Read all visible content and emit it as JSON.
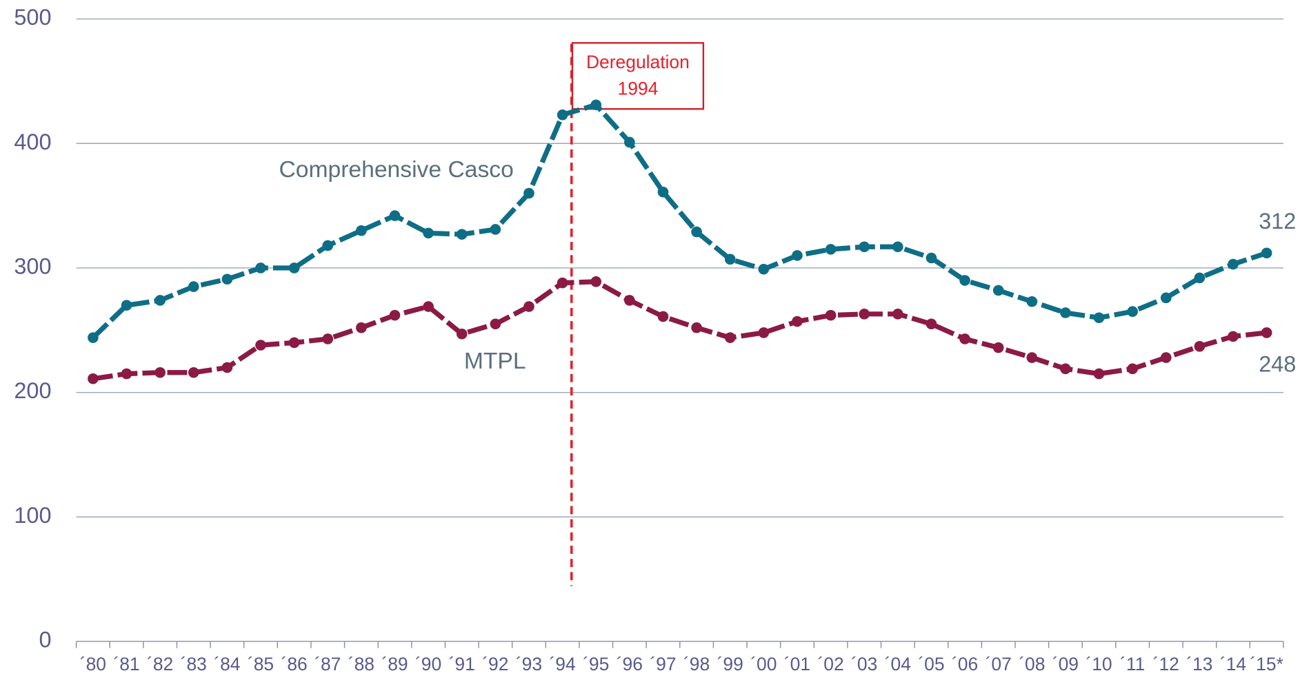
{
  "chart_data": {
    "type": "line",
    "categories": [
      "´80",
      "´81",
      "´82",
      "´83",
      "´84",
      "´85",
      "´86",
      "´87",
      "´88",
      "´89",
      "´90",
      "´91",
      "´92",
      "´93",
      "´94",
      "´95",
      "´96",
      "´97",
      "´98",
      "´99",
      "´00",
      "´01",
      "´02",
      "´03",
      "´04",
      "´05",
      "´06",
      "´07",
      "´08",
      "´09",
      "´10",
      "´11",
      "´12",
      "´13",
      "´14",
      "´15*"
    ],
    "series": [
      {
        "name": "Comprehensive Casco",
        "color": "#0e6e86",
        "values": [
          244,
          270,
          274,
          285,
          291,
          300,
          300,
          318,
          330,
          342,
          328,
          327,
          331,
          360,
          423,
          431,
          401,
          361,
          329,
          307,
          299,
          310,
          315,
          317,
          317,
          308,
          290,
          282,
          273,
          264,
          260,
          265,
          276,
          292,
          303,
          312
        ],
        "value_labels": [
          null,
          null,
          null,
          null,
          null,
          null,
          null,
          null,
          null,
          null,
          null,
          null,
          null,
          null,
          null,
          null,
          null,
          null,
          null,
          null,
          null,
          null,
          null,
          null,
          null,
          null,
          null,
          null,
          null,
          null,
          null,
          null,
          null,
          null,
          null,
          "312"
        ]
      },
      {
        "name": "MTPL",
        "color": "#8b1a45",
        "values": [
          211,
          215,
          216,
          216,
          220,
          238,
          240,
          243,
          252,
          262,
          269,
          247,
          255,
          269,
          288,
          289,
          274,
          261,
          252,
          244,
          248,
          257,
          262,
          263,
          263,
          255,
          243,
          236,
          228,
          219,
          215,
          219,
          228,
          237,
          245,
          248
        ],
        "value_labels": [
          null,
          null,
          null,
          null,
          null,
          null,
          null,
          null,
          null,
          null,
          null,
          null,
          null,
          null,
          null,
          null,
          null,
          null,
          null,
          null,
          null,
          null,
          null,
          null,
          null,
          null,
          null,
          null,
          null,
          null,
          null,
          null,
          null,
          null,
          null,
          "248"
        ]
      }
    ],
    "annotation": [
      "Deregulation",
      "1994"
    ],
    "ylim": [
      0,
      500
    ],
    "yticks": [
      0,
      100,
      200,
      300,
      400,
      500
    ],
    "grid": true
  }
}
